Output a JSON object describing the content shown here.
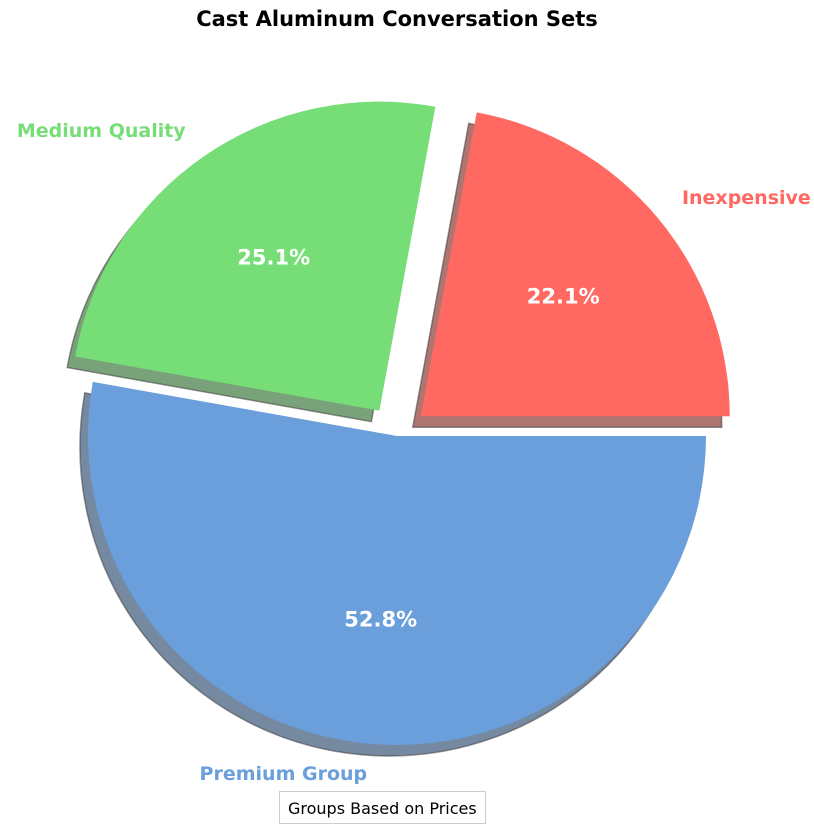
{
  "chart_data": {
    "type": "pie",
    "title": "Cast Aluminum Conversation Sets",
    "legend_title": "Groups Based on Prices",
    "legend_placement": "bottom-center",
    "start_angle_deg": 0,
    "direction": "counterclockwise",
    "shadow": true,
    "slices": [
      {
        "label": "Inexpensive",
        "value": 22.1,
        "pct_label": "22.1%",
        "color": "#ff6961",
        "exploded": true
      },
      {
        "label": "Medium Quality",
        "value": 25.1,
        "pct_label": "25.1%",
        "color": "#77dd77",
        "exploded": true
      },
      {
        "label": "Premium Group",
        "value": 52.8,
        "pct_label": "52.8%",
        "color": "#6a9fdb",
        "exploded": false
      }
    ]
  }
}
